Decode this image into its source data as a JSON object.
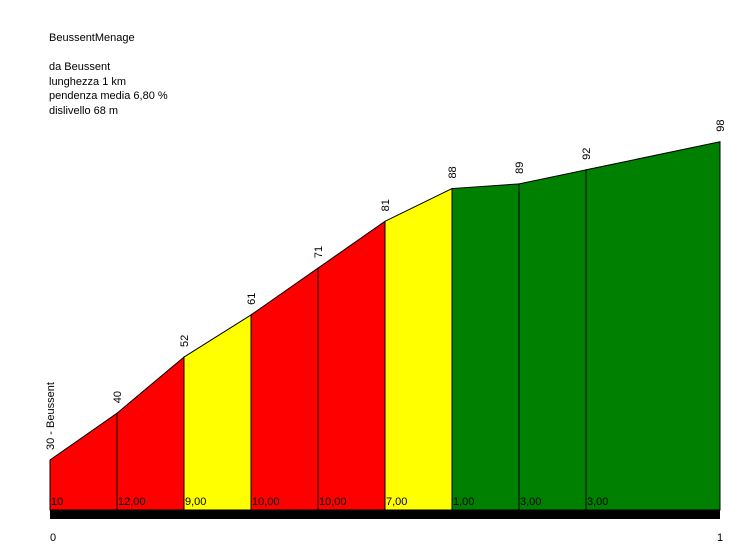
{
  "title": "BeussentMenage",
  "info": {
    "from": "da Beussent",
    "length": "lunghezza 1 km",
    "avg_gradient": "pendenza media 6,80 %",
    "elevation_gain": "dislivello 68 m"
  },
  "chart_data": {
    "type": "area",
    "title": "BeussentMenage",
    "x": [
      0,
      0.1,
      0.2,
      0.3,
      0.4,
      0.5,
      0.6,
      0.7,
      0.8,
      1.0
    ],
    "elevation": [
      30,
      40,
      52,
      61,
      71,
      81,
      88,
      89,
      92,
      98
    ],
    "elevation_labels": [
      "30 - Beussent",
      "40",
      "52",
      "61",
      "71",
      "81",
      "88",
      "89",
      "92",
      "98"
    ],
    "gradient_labels": [
      "10",
      "12,00",
      "9,00",
      "10,00",
      "10,00",
      "7,00",
      "1,00",
      "3,00",
      "3,00"
    ],
    "segment_colors": [
      "#ff0000",
      "#ff0000",
      "#ffff00",
      "#ff0000",
      "#ff0000",
      "#ffff00",
      "#008000",
      "#008000",
      "#008000"
    ],
    "x_tick_labels": [
      "0",
      "1"
    ],
    "xlim": [
      0,
      1
    ],
    "ylim": [
      20,
      100
    ]
  }
}
